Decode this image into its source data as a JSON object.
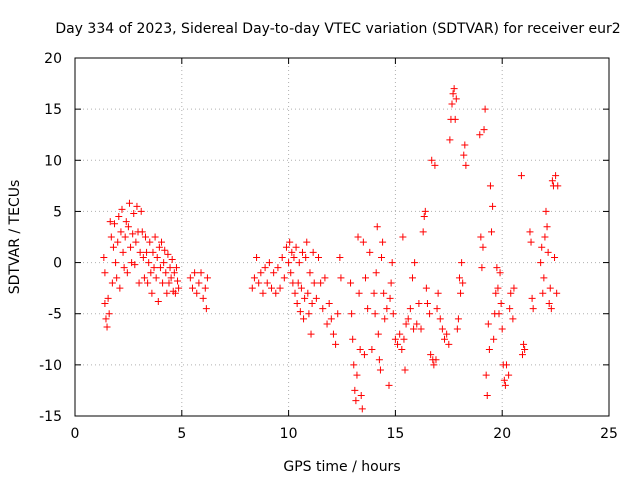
{
  "chart_data": {
    "type": "scatter",
    "title": "Day 334 of 2023, Sidereal Day-to-day VTEC variation (SDTVAR) for receiver eur2",
    "xlabel": "GPS time / hours",
    "ylabel": "SDTVAR / TECUs",
    "xlim": [
      0,
      25
    ],
    "ylim": [
      -15,
      20
    ],
    "xticks": [
      0,
      5,
      10,
      15,
      20,
      25
    ],
    "yticks": [
      -15,
      -10,
      -5,
      0,
      5,
      10,
      15,
      20
    ],
    "xtick_labels": [
      "0",
      "5",
      "10",
      "15",
      "20",
      "25"
    ],
    "ytick_labels": [
      "-15",
      "-10",
      "-5",
      "0",
      "5",
      "10",
      "15",
      "20"
    ],
    "grid": true,
    "marker": "+",
    "color": "#ff0000",
    "series": [
      {
        "name": "SDTVAR",
        "points": [
          [
            1.35,
            0.5
          ],
          [
            1.4,
            -1.0
          ],
          [
            1.4,
            -4.0
          ],
          [
            1.45,
            -5.5
          ],
          [
            1.5,
            -6.3
          ],
          [
            1.55,
            -3.5
          ],
          [
            1.6,
            -5.0
          ],
          [
            1.65,
            4.0
          ],
          [
            1.7,
            2.5
          ],
          [
            1.75,
            -2.0
          ],
          [
            1.8,
            1.5
          ],
          [
            1.85,
            3.8
          ],
          [
            1.9,
            0.0
          ],
          [
            1.95,
            -1.5
          ],
          [
            2.0,
            2.0
          ],
          [
            2.05,
            4.5
          ],
          [
            2.1,
            -2.5
          ],
          [
            2.15,
            3.0
          ],
          [
            2.2,
            5.2
          ],
          [
            2.25,
            1.0
          ],
          [
            2.3,
            -0.5
          ],
          [
            2.35,
            2.5
          ],
          [
            2.4,
            4.0
          ],
          [
            2.45,
            -1.0
          ],
          [
            2.5,
            3.5
          ],
          [
            2.55,
            5.8
          ],
          [
            2.6,
            1.5
          ],
          [
            2.65,
            0.0
          ],
          [
            2.7,
            2.8
          ],
          [
            2.75,
            4.8
          ],
          [
            2.8,
            -0.2
          ],
          [
            2.85,
            2.0
          ],
          [
            2.9,
            5.5
          ],
          [
            2.95,
            3.0
          ],
          [
            3.0,
            -2.0
          ],
          [
            3.05,
            1.0
          ],
          [
            3.1,
            5.0
          ],
          [
            3.15,
            3.0
          ],
          [
            3.2,
            0.5
          ],
          [
            3.25,
            -1.5
          ],
          [
            3.3,
            2.5
          ],
          [
            3.35,
            1.0
          ],
          [
            3.4,
            -2.0
          ],
          [
            3.45,
            0.0
          ],
          [
            3.5,
            2.0
          ],
          [
            3.55,
            -1.0
          ],
          [
            3.6,
            -3.0
          ],
          [
            3.65,
            1.0
          ],
          [
            3.7,
            -0.5
          ],
          [
            3.75,
            2.5
          ],
          [
            3.8,
            -1.5
          ],
          [
            3.85,
            0.5
          ],
          [
            3.9,
            -3.8
          ],
          [
            3.95,
            1.5
          ],
          [
            4.0,
            -0.5
          ],
          [
            4.05,
            2.0
          ],
          [
            4.1,
            -2.0
          ],
          [
            4.15,
            0.0
          ],
          [
            4.2,
            1.2
          ],
          [
            4.25,
            -1.0
          ],
          [
            4.3,
            -3.0
          ],
          [
            4.35,
            0.8
          ],
          [
            4.4,
            -2.0
          ],
          [
            4.45,
            -0.5
          ],
          [
            4.5,
            -1.5
          ],
          [
            4.55,
            0.3
          ],
          [
            4.6,
            -2.8
          ],
          [
            4.65,
            -1.0
          ],
          [
            4.7,
            -3.0
          ],
          [
            4.75,
            -0.5
          ],
          [
            4.8,
            -1.8
          ],
          [
            4.85,
            -2.5
          ],
          [
            5.4,
            -1.5
          ],
          [
            5.5,
            -2.5
          ],
          [
            5.6,
            -1.0
          ],
          [
            5.7,
            -3.0
          ],
          [
            5.8,
            -2.0
          ],
          [
            5.9,
            -1.0
          ],
          [
            6.0,
            -3.5
          ],
          [
            6.1,
            -2.5
          ],
          [
            6.15,
            -4.5
          ],
          [
            6.2,
            -1.5
          ],
          [
            8.3,
            -2.5
          ],
          [
            8.4,
            -1.5
          ],
          [
            8.5,
            0.5
          ],
          [
            8.6,
            -2.0
          ],
          [
            8.7,
            -1.0
          ],
          [
            8.8,
            -3.0
          ],
          [
            8.9,
            -0.5
          ],
          [
            9.0,
            -2.0
          ],
          [
            9.1,
            0.0
          ],
          [
            9.2,
            -2.5
          ],
          [
            9.3,
            -1.0
          ],
          [
            9.4,
            -3.0
          ],
          [
            9.5,
            -0.5
          ],
          [
            9.6,
            -2.5
          ],
          [
            9.7,
            0.5
          ],
          [
            9.8,
            -1.5
          ],
          [
            9.9,
            1.5
          ],
          [
            10.0,
            0.0
          ],
          [
            10.05,
            2.0
          ],
          [
            10.1,
            -1.0
          ],
          [
            10.15,
            1.0
          ],
          [
            10.2,
            -2.0
          ],
          [
            10.25,
            0.5
          ],
          [
            10.3,
            -3.0
          ],
          [
            10.35,
            1.5
          ],
          [
            10.4,
            -4.0
          ],
          [
            10.45,
            -2.0
          ],
          [
            10.5,
            0.0
          ],
          [
            10.55,
            -4.8
          ],
          [
            10.6,
            -2.5
          ],
          [
            10.65,
            1.0
          ],
          [
            10.7,
            -5.5
          ],
          [
            10.75,
            -3.5
          ],
          [
            10.8,
            0.5
          ],
          [
            10.85,
            2.0
          ],
          [
            10.9,
            -3.0
          ],
          [
            10.95,
            -5.0
          ],
          [
            11.0,
            -1.0
          ],
          [
            11.05,
            -7.0
          ],
          [
            11.1,
            -4.0
          ],
          [
            11.15,
            1.0
          ],
          [
            11.2,
            -2.0
          ],
          [
            11.3,
            -3.5
          ],
          [
            11.4,
            0.5
          ],
          [
            11.5,
            -2.0
          ],
          [
            11.6,
            -4.5
          ],
          [
            11.7,
            -1.5
          ],
          [
            11.8,
            -6.0
          ],
          [
            11.9,
            -4.0
          ],
          [
            12.0,
            -5.5
          ],
          [
            12.1,
            -7.0
          ],
          [
            12.2,
            -8.0
          ],
          [
            12.3,
            -5.0
          ],
          [
            12.4,
            0.5
          ],
          [
            12.45,
            -1.5
          ],
          [
            12.9,
            -2.0
          ],
          [
            12.95,
            -5.0
          ],
          [
            13.0,
            -7.5
          ],
          [
            13.05,
            -10.0
          ],
          [
            13.1,
            -12.5
          ],
          [
            13.15,
            -13.5
          ],
          [
            13.2,
            -11.0
          ],
          [
            13.25,
            2.5
          ],
          [
            13.3,
            -3.0
          ],
          [
            13.35,
            -8.5
          ],
          [
            13.4,
            -13.0
          ],
          [
            13.45,
            -14.3
          ],
          [
            13.5,
            2.0
          ],
          [
            13.55,
            -9.0
          ],
          [
            13.6,
            -1.5
          ],
          [
            13.7,
            -4.5
          ],
          [
            13.8,
            1.0
          ],
          [
            13.9,
            -8.5
          ],
          [
            14.0,
            -3.0
          ],
          [
            14.05,
            -5.0
          ],
          [
            14.1,
            -1.0
          ],
          [
            14.15,
            3.5
          ],
          [
            14.2,
            -7.0
          ],
          [
            14.25,
            -9.5
          ],
          [
            14.3,
            -10.5
          ],
          [
            14.35,
            0.5
          ],
          [
            14.4,
            2.0
          ],
          [
            14.45,
            -3.0
          ],
          [
            14.5,
            -5.5
          ],
          [
            14.6,
            -4.5
          ],
          [
            14.7,
            -12.0
          ],
          [
            14.75,
            -3.5
          ],
          [
            14.8,
            -2.0
          ],
          [
            14.85,
            0.0
          ],
          [
            14.9,
            -5.0
          ],
          [
            15.0,
            -7.5
          ],
          [
            15.1,
            -8.0
          ],
          [
            15.2,
            -7.0
          ],
          [
            15.3,
            -8.5
          ],
          [
            15.35,
            2.5
          ],
          [
            15.4,
            -7.5
          ],
          [
            15.45,
            -10.5
          ],
          [
            15.5,
            -6.0
          ],
          [
            15.6,
            -5.5
          ],
          [
            15.7,
            -4.5
          ],
          [
            15.8,
            -1.5
          ],
          [
            15.85,
            -6.5
          ],
          [
            15.9,
            0.0
          ],
          [
            16.0,
            -6.0
          ],
          [
            16.1,
            -4.0
          ],
          [
            16.2,
            -6.5
          ],
          [
            16.3,
            3.0
          ],
          [
            16.35,
            4.5
          ],
          [
            16.4,
            5.0
          ],
          [
            16.45,
            -2.5
          ],
          [
            16.5,
            -4.0
          ],
          [
            16.6,
            -5.0
          ],
          [
            16.65,
            -9.0
          ],
          [
            16.7,
            10.0
          ],
          [
            16.75,
            -9.5
          ],
          [
            16.8,
            -10.0
          ],
          [
            16.85,
            9.5
          ],
          [
            16.9,
            -9.5
          ],
          [
            16.95,
            -4.5
          ],
          [
            17.0,
            -3.0
          ],
          [
            17.1,
            -5.5
          ],
          [
            17.2,
            -6.5
          ],
          [
            17.3,
            -7.5
          ],
          [
            17.4,
            -7.0
          ],
          [
            17.5,
            -8.0
          ],
          [
            17.55,
            12.0
          ],
          [
            17.6,
            14.0
          ],
          [
            17.65,
            15.5
          ],
          [
            17.7,
            16.5
          ],
          [
            17.75,
            17.0
          ],
          [
            17.8,
            14.0
          ],
          [
            17.85,
            16.0
          ],
          [
            17.9,
            -6.5
          ],
          [
            17.95,
            -5.5
          ],
          [
            18.0,
            -1.5
          ],
          [
            18.05,
            -3.0
          ],
          [
            18.1,
            0.0
          ],
          [
            18.15,
            -2.0
          ],
          [
            18.2,
            10.5
          ],
          [
            18.25,
            11.5
          ],
          [
            18.3,
            9.5
          ],
          [
            18.95,
            12.5
          ],
          [
            19.0,
            2.5
          ],
          [
            19.05,
            -0.5
          ],
          [
            19.1,
            1.5
          ],
          [
            19.15,
            13.0
          ],
          [
            19.2,
            15.0
          ],
          [
            19.25,
            -11.0
          ],
          [
            19.3,
            -13.0
          ],
          [
            19.35,
            -6.0
          ],
          [
            19.4,
            -8.5
          ],
          [
            19.45,
            7.5
          ],
          [
            19.5,
            3.0
          ],
          [
            19.55,
            5.5
          ],
          [
            19.6,
            -7.5
          ],
          [
            19.65,
            -5.0
          ],
          [
            19.7,
            -3.0
          ],
          [
            19.75,
            -0.5
          ],
          [
            19.8,
            -2.5
          ],
          [
            19.85,
            -5.0
          ],
          [
            19.9,
            -1.0
          ],
          [
            19.95,
            -4.0
          ],
          [
            20.0,
            -6.5
          ],
          [
            20.05,
            -10.0
          ],
          [
            20.1,
            -11.5
          ],
          [
            20.15,
            -12.0
          ],
          [
            20.2,
            -10.0
          ],
          [
            20.3,
            -11.0
          ],
          [
            20.35,
            -4.5
          ],
          [
            20.4,
            -3.0
          ],
          [
            20.5,
            -5.5
          ],
          [
            20.55,
            -2.5
          ],
          [
            20.9,
            8.5
          ],
          [
            20.95,
            -9.0
          ],
          [
            21.0,
            -8.0
          ],
          [
            21.05,
            -8.5
          ],
          [
            21.3,
            3.0
          ],
          [
            21.35,
            2.0
          ],
          [
            21.4,
            -3.5
          ],
          [
            21.45,
            -4.5
          ],
          [
            21.8,
            0.0
          ],
          [
            21.85,
            1.5
          ],
          [
            21.9,
            -3.0
          ],
          [
            21.95,
            -1.5
          ],
          [
            22.0,
            2.5
          ],
          [
            22.05,
            5.0
          ],
          [
            22.1,
            3.5
          ],
          [
            22.15,
            1.0
          ],
          [
            22.2,
            -4.0
          ],
          [
            22.25,
            -2.5
          ],
          [
            22.3,
            -4.5
          ],
          [
            22.35,
            8.0
          ],
          [
            22.4,
            7.5
          ],
          [
            22.45,
            0.5
          ],
          [
            22.5,
            8.5
          ],
          [
            22.55,
            -3.0
          ],
          [
            22.6,
            7.5
          ]
        ]
      }
    ]
  }
}
